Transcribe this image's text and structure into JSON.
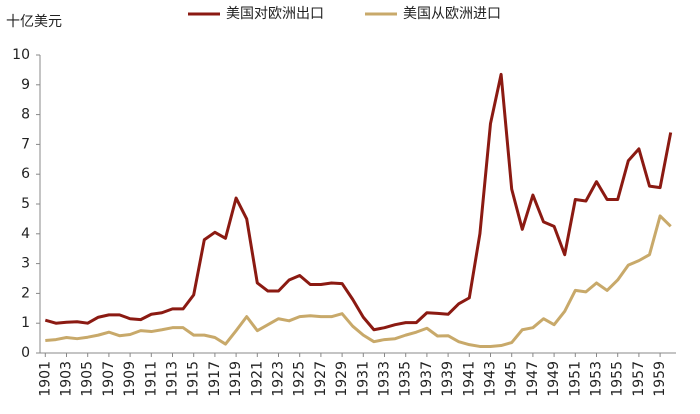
{
  "chart_data": {
    "type": "line",
    "y_label": "十亿美元",
    "x": [
      1901,
      1902,
      1903,
      1904,
      1905,
      1906,
      1907,
      1908,
      1909,
      1910,
      1911,
      1912,
      1913,
      1914,
      1915,
      1916,
      1917,
      1918,
      1919,
      1920,
      1921,
      1922,
      1923,
      1924,
      1925,
      1926,
      1927,
      1928,
      1929,
      1930,
      1931,
      1932,
      1933,
      1934,
      1935,
      1936,
      1937,
      1938,
      1939,
      1940,
      1941,
      1942,
      1943,
      1944,
      1945,
      1946,
      1947,
      1948,
      1949,
      1950,
      1951,
      1952,
      1953,
      1954,
      1955,
      1956,
      1957,
      1958,
      1959,
      1960
    ],
    "series": [
      {
        "name": "美国对欧洲出口",
        "color": "#8b1a12",
        "values": [
          1.1,
          1.0,
          1.03,
          1.05,
          1.0,
          1.2,
          1.28,
          1.28,
          1.15,
          1.12,
          1.3,
          1.35,
          1.48,
          1.48,
          1.95,
          3.8,
          4.05,
          3.85,
          5.2,
          4.5,
          2.35,
          2.08,
          2.08,
          2.45,
          2.6,
          2.3,
          2.3,
          2.35,
          2.33,
          1.8,
          1.2,
          0.78,
          0.85,
          0.95,
          1.02,
          1.02,
          1.35,
          1.33,
          1.3,
          1.65,
          1.85,
          4.0,
          7.7,
          9.35,
          5.5,
          4.15,
          5.3,
          4.4,
          4.25,
          3.3,
          5.15,
          5.1,
          5.75,
          5.15,
          5.15,
          6.45,
          6.85,
          5.6,
          5.55,
          7.4
        ]
      },
      {
        "name": "美国从欧洲进口",
        "color": "#c8a96a",
        "values": [
          0.42,
          0.45,
          0.52,
          0.48,
          0.53,
          0.6,
          0.7,
          0.58,
          0.62,
          0.75,
          0.72,
          0.78,
          0.85,
          0.85,
          0.6,
          0.6,
          0.52,
          0.3,
          0.75,
          1.22,
          0.75,
          0.95,
          1.15,
          1.08,
          1.22,
          1.25,
          1.22,
          1.22,
          1.32,
          0.9,
          0.6,
          0.38,
          0.45,
          0.48,
          0.6,
          0.7,
          0.83,
          0.57,
          0.58,
          0.38,
          0.28,
          0.22,
          0.22,
          0.25,
          0.35,
          0.78,
          0.85,
          1.15,
          0.95,
          1.4,
          2.1,
          2.05,
          2.35,
          2.1,
          2.45,
          2.95,
          3.1,
          3.3,
          4.6,
          4.25
        ]
      }
    ],
    "xlim": [
      1900.5,
      1960.5
    ],
    "xticks": [
      1901,
      1903,
      1905,
      1907,
      1909,
      1911,
      1913,
      1915,
      1917,
      1919,
      1921,
      1923,
      1925,
      1927,
      1929,
      1931,
      1933,
      1935,
      1937,
      1939,
      1941,
      1943,
      1945,
      1947,
      1949,
      1951,
      1953,
      1955,
      1957,
      1959
    ],
    "ylim": [
      0,
      10
    ],
    "yticks": [
      0,
      1,
      2,
      3,
      4,
      5,
      6,
      7,
      8,
      9,
      10
    ],
    "grid": false,
    "legend": "top"
  }
}
